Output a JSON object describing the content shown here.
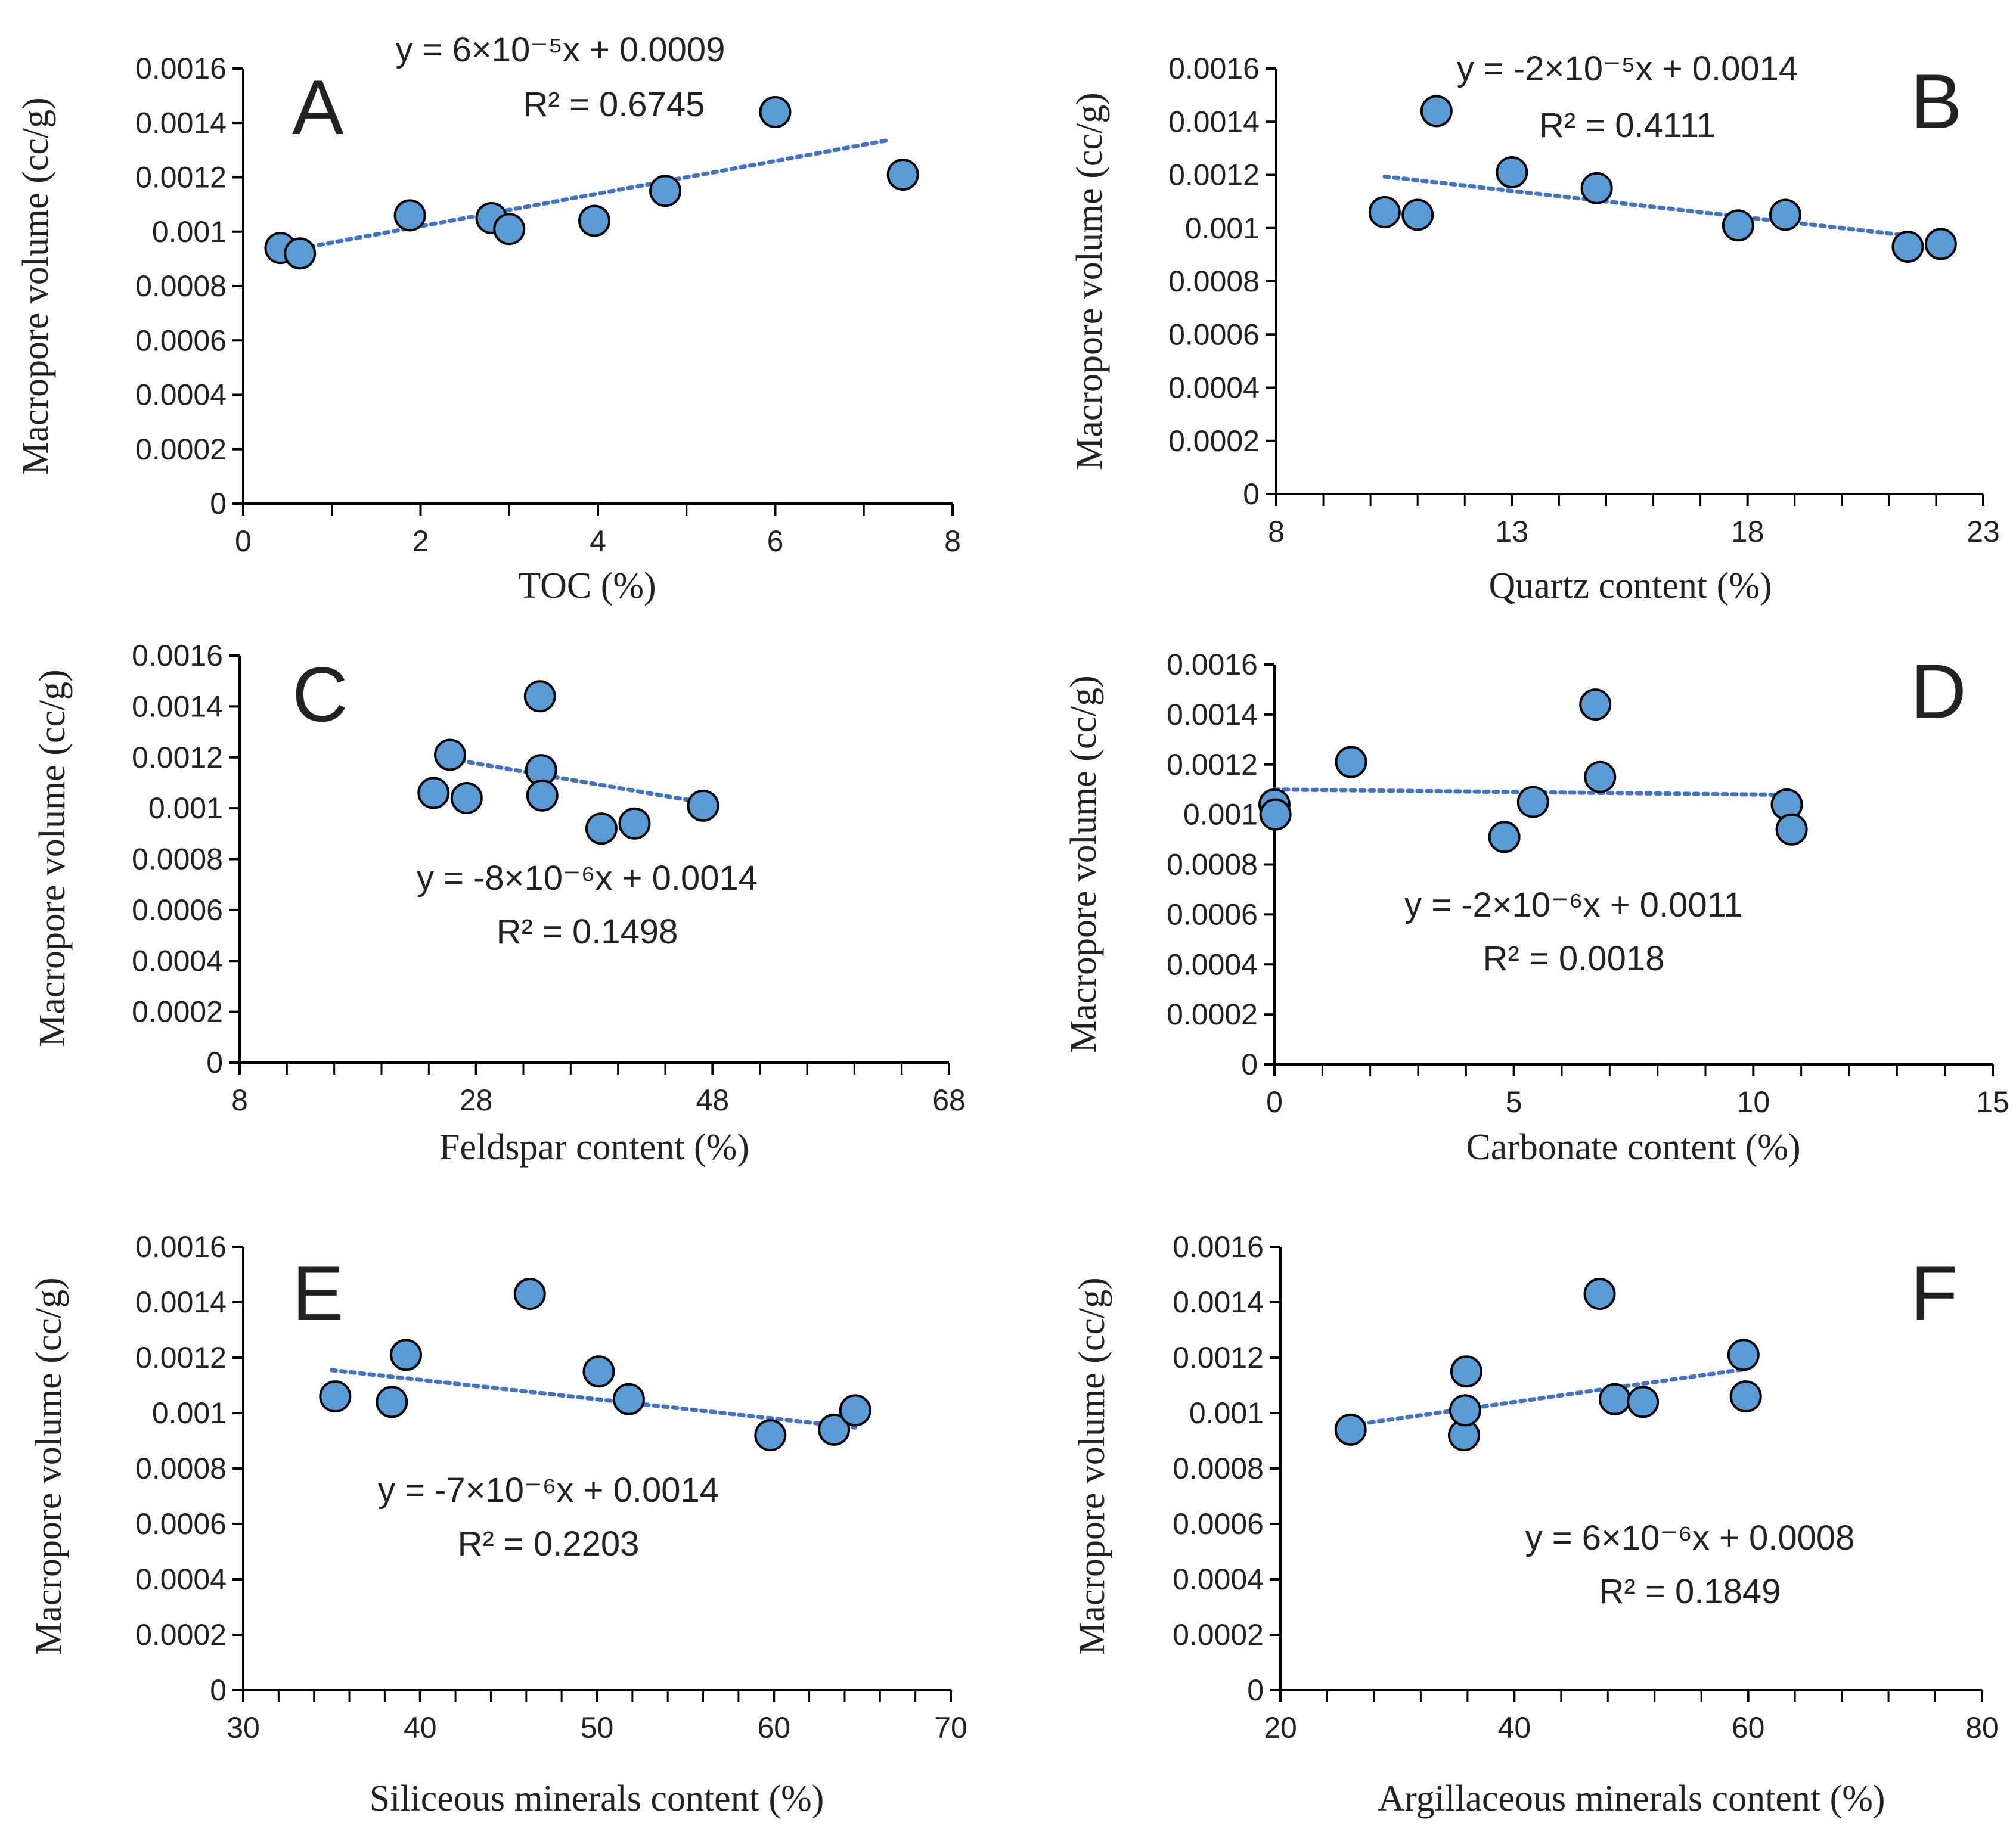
{
  "chart_data": [
    {
      "type": "scatter",
      "panel_label": "A",
      "xlabel": "TOC (%)",
      "ylabel": "Macropore volume (cc/g)",
      "xlim": [
        0,
        8
      ],
      "ylim": [
        0,
        0.0016
      ],
      "xticks": [
        0,
        2,
        4,
        6,
        8
      ],
      "xtick_labels": [
        "0",
        "2",
        "4",
        "6",
        "8"
      ],
      "yticks": [
        0,
        0.0002,
        0.0004,
        0.0006,
        0.0008,
        0.001,
        0.0012,
        0.0014,
        0.0016
      ],
      "ytick_labels": [
        "0",
        "0.0002",
        "0.0004",
        "0.0006",
        "0.0008",
        "0.001",
        "0.0012",
        "0.0014",
        "0.0016"
      ],
      "series": [
        {
          "x": [
            0.42,
            0.64,
            1.88,
            2.8,
            3.0,
            3.96,
            4.76,
            6.0,
            7.44
          ],
          "y": [
            0.00094,
            0.00092,
            0.00106,
            0.00105,
            0.00101,
            0.00104,
            0.00115,
            0.00144,
            0.00121
          ]
        }
      ],
      "trendline": {
        "slope": 6e-05,
        "intercept": 0.0009,
        "x_range": [
          0.64,
          7.3
        ],
        "style": "dotted"
      },
      "equation": "y = 6×10⁻⁵x + 0.0009",
      "r_squared": "R² = 0.6745",
      "grid": false,
      "marker_color": "#5b9bd5"
    },
    {
      "type": "scatter",
      "panel_label": "B",
      "xlabel": "Quartz content (%)",
      "ylabel": "Macropore volume (cc/g)",
      "xlim": [
        8,
        23
      ],
      "ylim": [
        0,
        0.0016
      ],
      "xticks": [
        8,
        13,
        18,
        23
      ],
      "xtick_labels": [
        "8",
        "13",
        "18",
        "23"
      ],
      "yticks": [
        0,
        0.0002,
        0.0004,
        0.0006,
        0.0008,
        0.001,
        0.0012,
        0.0014,
        0.0016
      ],
      "ytick_labels": [
        "0",
        "0.0002",
        "0.0004",
        "0.0006",
        "0.0008",
        "0.001",
        "0.0012",
        "0.0014",
        "0.0016"
      ],
      "series": [
        {
          "x": [
            10.3,
            11.0,
            11.4,
            13.0,
            14.8,
            17.8,
            18.8,
            21.4,
            22.1
          ],
          "y": [
            0.00106,
            0.00105,
            0.00144,
            0.00121,
            0.00115,
            0.00101,
            0.00105,
            0.00093,
            0.00094
          ]
        }
      ],
      "trendline": {
        "slope": -2e-05,
        "intercept": 0.0014,
        "x_range": [
          10.3,
          21.4
        ],
        "style": "dotted"
      },
      "equation": "y = -2×10⁻⁵x + 0.0014",
      "r_squared": "R² = 0.4111",
      "grid": false,
      "marker_color": "#5b9bd5"
    },
    {
      "type": "scatter",
      "panel_label": "C",
      "xlabel": "Feldspar content (%)",
      "ylabel": "Macropore volume (cc/g)",
      "xlim": [
        8,
        68
      ],
      "ylim": [
        0,
        0.0016
      ],
      "xticks": [
        8,
        28,
        48,
        68
      ],
      "xtick_labels": [
        "8",
        "28",
        "48",
        "68"
      ],
      "yticks": [
        0,
        0.0002,
        0.0004,
        0.0006,
        0.0008,
        0.001,
        0.0012,
        0.0014,
        0.0016
      ],
      "ytick_labels": [
        "0",
        "0.0002",
        "0.0004",
        "0.0006",
        "0.0008",
        "0.001",
        "0.0012",
        "0.0014",
        "0.0016"
      ],
      "series": [
        {
          "x": [
            24.4,
            25.8,
            27.2,
            33.4,
            33.5,
            33.6,
            38.6,
            41.4,
            47.2
          ],
          "y": [
            0.00106,
            0.00121,
            0.00104,
            0.00144,
            0.00115,
            0.00105,
            0.00092,
            0.00094,
            0.00101
          ]
        }
      ],
      "trendline": {
        "slope": -8e-06,
        "intercept": 0.0014,
        "x_range": [
          25.8,
          47.2
        ],
        "style": "dotted"
      },
      "equation": "y = -8×10⁻⁶x + 0.0014",
      "r_squared": "R² = 0.1498",
      "grid": false,
      "marker_color": "#5b9bd5"
    },
    {
      "type": "scatter",
      "panel_label": "D",
      "xlabel": "Carbonate content (%)",
      "ylabel": "Macropore volume (cc/g)",
      "xlim": [
        0,
        15
      ],
      "ylim": [
        0,
        0.0016
      ],
      "xticks": [
        0,
        5,
        10,
        15
      ],
      "xtick_labels": [
        "0",
        "5",
        "10",
        "15"
      ],
      "yticks": [
        0,
        0.0002,
        0.0004,
        0.0006,
        0.0008,
        0.001,
        0.0012,
        0.0014,
        0.0016
      ],
      "ytick_labels": [
        "0",
        "0.0002",
        "0.0004",
        "0.0006",
        "0.0008",
        "0.001",
        "0.0012",
        "0.0014",
        "0.0016"
      ],
      "series": [
        {
          "x": [
            0.0,
            0.02,
            1.6,
            4.8,
            5.4,
            6.7,
            6.8,
            10.7,
            10.8
          ],
          "y": [
            0.00104,
            0.001,
            0.00121,
            0.00091,
            0.00105,
            0.00144,
            0.00115,
            0.00104,
            0.00094
          ]
        }
      ],
      "trendline": {
        "slope": -2e-06,
        "intercept": 0.0011,
        "x_range": [
          0,
          10.8
        ],
        "style": "dotted"
      },
      "equation": "y = -2×10⁻⁶x + 0.0011",
      "r_squared": "R² = 0.0018",
      "grid": false,
      "marker_color": "#5b9bd5"
    },
    {
      "type": "scatter",
      "panel_label": "E",
      "xlabel": "Siliceous minerals content (%)",
      "ylabel": "Macropore volume (cc/g)",
      "xlim": [
        30,
        70
      ],
      "ylim": [
        0,
        0.0016
      ],
      "xticks": [
        30,
        40,
        50,
        60,
        70
      ],
      "xtick_labels": [
        "30",
        "40",
        "50",
        "60",
        "70"
      ],
      "yticks": [
        0,
        0.0002,
        0.0004,
        0.0006,
        0.0008,
        0.001,
        0.0012,
        0.0014,
        0.0016
      ],
      "ytick_labels": [
        "0",
        "0.0002",
        "0.0004",
        "0.0006",
        "0.0008",
        "0.001",
        "0.0012",
        "0.0014",
        "0.0016"
      ],
      "series": [
        {
          "x": [
            35.2,
            38.4,
            39.2,
            46.2,
            50.1,
            51.8,
            59.8,
            63.4,
            64.6
          ],
          "y": [
            0.00106,
            0.00104,
            0.00121,
            0.00143,
            0.00115,
            0.00105,
            0.00092,
            0.00094,
            0.00101
          ]
        }
      ],
      "trendline": {
        "slope": -7e-06,
        "intercept": 0.0014,
        "x_range": [
          35.0,
          64.6
        ],
        "style": "dotted"
      },
      "equation": "y = -7×10⁻⁶x + 0.0014",
      "r_squared": "R² = 0.2203",
      "grid": false,
      "marker_color": "#5b9bd5"
    },
    {
      "type": "scatter",
      "panel_label": "F",
      "xlabel": "Argillaceous minerals content (%)",
      "ylabel": "Macropore volume (cc/g)",
      "xlim": [
        20,
        80
      ],
      "ylim": [
        0,
        0.0016
      ],
      "xticks": [
        20,
        40,
        60,
        80
      ],
      "xtick_labels": [
        "20",
        "40",
        "60",
        "80"
      ],
      "yticks": [
        0,
        0.0002,
        0.0004,
        0.0006,
        0.0008,
        0.001,
        0.0012,
        0.0014,
        0.0016
      ],
      "ytick_labels": [
        "0",
        "0.0002",
        "0.0004",
        "0.0006",
        "0.0008",
        "0.001",
        "0.0012",
        "0.0014",
        "0.0016"
      ],
      "series": [
        {
          "x": [
            26.0,
            35.7,
            35.8,
            35.9,
            47.3,
            48.6,
            51.0,
            59.6,
            59.8
          ],
          "y": [
            0.00094,
            0.00092,
            0.00101,
            0.00115,
            0.00143,
            0.00105,
            0.00104,
            0.00121,
            0.00106
          ]
        }
      ],
      "trendline": {
        "slope": 6e-06,
        "intercept": 0.0008,
        "x_range": [
          26.0,
          59.6
        ],
        "style": "dotted"
      },
      "equation": "y = 6×10⁻⁶x + 0.0008",
      "r_squared": "R² = 0.1849",
      "grid": false,
      "marker_color": "#5b9bd5"
    }
  ]
}
